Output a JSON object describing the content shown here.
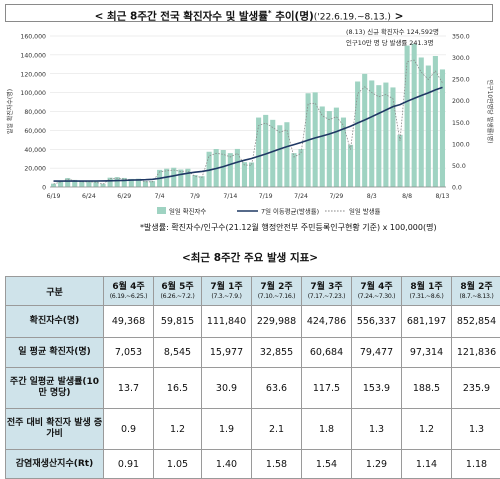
{
  "header": {
    "title_main": "< 최근 8주간 전국 확진자수 및 발생률",
    "title_sup": "*",
    "title_end": " 추이(명)",
    "title_dates": "('22.6.19.~8.13.)",
    "title_close": " >"
  },
  "chart_data": {
    "type": "bar+line",
    "y_left": {
      "min": 0,
      "max": 160000,
      "ticks": [
        "0",
        "20,000",
        "40,000",
        "60,000",
        "80,000",
        "100,000",
        "120,000",
        "140,000",
        "160,000"
      ],
      "label": "일일 확진자수(명)"
    },
    "y_right": {
      "min": 0,
      "max": 350,
      "ticks": [
        "0.0",
        "50.0",
        "100.0",
        "150.0",
        "200.0",
        "250.0",
        "300.0",
        "350.0"
      ],
      "label": "인구10만명당 발생률(명)"
    },
    "x_ticks": [
      "6/19",
      "6/24",
      "6/29",
      "7/4",
      "7/9",
      "7/14",
      "7/19",
      "7/24",
      "7/29",
      "8/3",
      "8/8",
      "8/13"
    ],
    "annotation_line1": "(8.13) 신규 확진자수 124,592명",
    "annotation_line2": "인구10만 명 당 발생률 241.3명",
    "legend": [
      "일일 확진자수",
      "7일 이동평균(발생률)",
      "일일 발생률"
    ],
    "series": [
      {
        "name": "일일 확진자수",
        "values": [
          3530,
          6068,
          9435,
          7495,
          6246,
          6240,
          5804,
          3423,
          9896,
          10453,
          9595,
          8542,
          8779,
          6248,
          6254,
          18147,
          19371,
          20410,
          18511,
          19323,
          12693,
          11436,
          37360,
          40266,
          39196,
          35883,
          40342,
          26299,
          26000,
          73582,
          76402,
          71170,
          65433,
          68632,
          35883,
          40233,
          99327,
          100285,
          85320,
          80522,
          84124,
          73589,
          44689,
          111789,
          119922,
          112901,
          107894,
          110666,
          105507,
          55292,
          149897,
          151792,
          137241,
          128714,
          138812,
          124592
        ]
      },
      {
        "name": "7일 이동평균(발생률)",
        "values": [
          13.6,
          13.6,
          13.7,
          13.7,
          13.7,
          13.8,
          13.8,
          14.1,
          14.4,
          14.8,
          15.3,
          15.9,
          16.5,
          16.9,
          17.9,
          20.1,
          22.9,
          26.0,
          29.3,
          32.1,
          34.3,
          36.1,
          38.9,
          42.9,
          47.4,
          52.3,
          57.8,
          62.2,
          66.1,
          71.5,
          76.5,
          82.4,
          88.0,
          93.7,
          98.2,
          103.2,
          108.6,
          113.8,
          118.3,
          122.8,
          128.4,
          134.7,
          141.0,
          148.3,
          155.4,
          162.9,
          170.6,
          178.4,
          186.4,
          190.9,
          198.7,
          205.4,
          212.0,
          218.2,
          225.1,
          230.9
        ]
      },
      {
        "name": "일일 발생률",
        "values": [
          6.8,
          11.7,
          18.2,
          14.5,
          12.1,
          12.1,
          11.2,
          6.6,
          19.2,
          20.3,
          18.6,
          16.5,
          17.0,
          12.1,
          12.1,
          35.2,
          37.5,
          39.5,
          35.9,
          37.4,
          24.6,
          22.2,
          72.4,
          78.0,
          75.9,
          69.5,
          78.1,
          50.9,
          50.4,
          142.5,
          148.0,
          137.9,
          126.7,
          132.9,
          69.5,
          77.9,
          192.4,
          194.3,
          165.3,
          156.0,
          163.0,
          142.5,
          86.6,
          216.6,
          232.3,
          218.7,
          209.0,
          214.4,
          204.4,
          107.1,
          290.4,
          294.1,
          265.9,
          249.3,
          268.9,
          241.3
        ]
      }
    ]
  },
  "footnote": "*발생률: 확진자수/인구수(21.12월 행정안전부 주민등록인구현황 기준) x 100,000(명)",
  "table": {
    "title": "<최근 8주간 주요 발생 지표>",
    "corner": "구분",
    "weeks": [
      {
        "label": "6월 4주",
        "range": "(6.19.~6.25.)"
      },
      {
        "label": "6월 5주",
        "range": "(6.26.~7.2.)"
      },
      {
        "label": "7월 1주",
        "range": "(7.3.~7.9.)"
      },
      {
        "label": "7월 2주",
        "range": "(7.10.~7.16.)"
      },
      {
        "label": "7월 3주",
        "range": "(7.17.~7.23.)"
      },
      {
        "label": "7월 4주",
        "range": "(7.24.~7.30.)"
      },
      {
        "label": "8월 1주",
        "range": "(7.31.~8.6.)"
      },
      {
        "label": "8월 2주",
        "range": "(8.7.~8.13.)"
      }
    ],
    "rows": [
      {
        "label": "확진자수(명)",
        "values": [
          "49,368",
          "59,815",
          "111,840",
          "229,988",
          "424,786",
          "556,337",
          "681,197",
          "852,854"
        ]
      },
      {
        "label": "일 평균 확진자(명)",
        "values": [
          "7,053",
          "8,545",
          "15,977",
          "32,855",
          "60,684",
          "79,477",
          "97,314",
          "121,836"
        ]
      },
      {
        "label": "주간 일평균 발생률(10만 명당)",
        "values": [
          "13.7",
          "16.5",
          "30.9",
          "63.6",
          "117.5",
          "153.9",
          "188.5",
          "235.9"
        ]
      },
      {
        "label": "전주 대비 확진자 발생 증가비",
        "values": [
          "0.9",
          "1.2",
          "1.9",
          "2.1",
          "1.8",
          "1.3",
          "1.2",
          "1.3"
        ]
      },
      {
        "label": "감염재생산지수(Rt)",
        "values": [
          "0.91",
          "1.05",
          "1.40",
          "1.58",
          "1.54",
          "1.29",
          "1.14",
          "1.18"
        ]
      }
    ]
  }
}
